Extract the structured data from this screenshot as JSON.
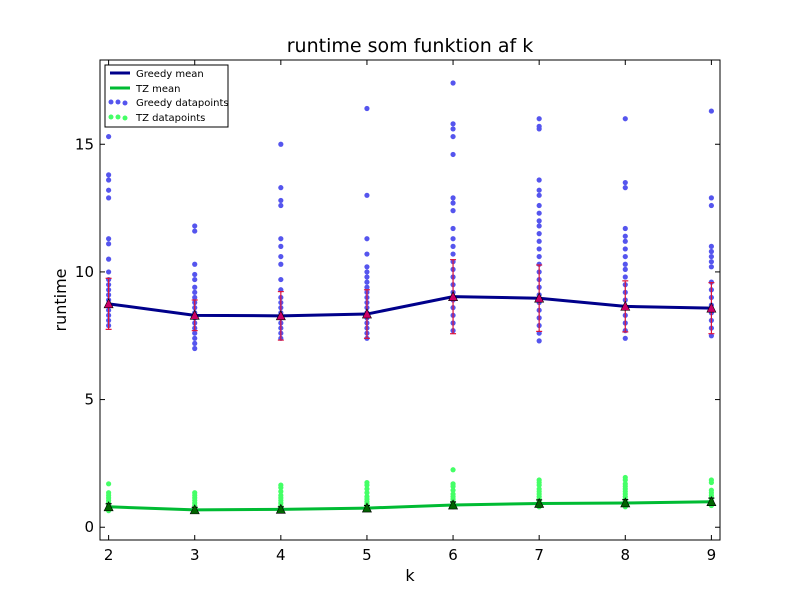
{
  "chart_data": {
    "type": "line",
    "title": "runtime som funktion af k",
    "xlabel": "k",
    "ylabel": "runtime",
    "x": [
      2,
      3,
      4,
      5,
      6,
      7,
      8,
      9
    ],
    "xlim": [
      1.9,
      9.1
    ],
    "ylim": [
      -0.5,
      18.3
    ],
    "yticks": [
      0,
      5,
      10,
      15
    ],
    "xticks": [
      2,
      3,
      4,
      5,
      6,
      7,
      8,
      9
    ],
    "legend_position": "top-left",
    "grid": false,
    "series": [
      {
        "name": "Greedy mean",
        "kind": "line",
        "color": "#00008b",
        "values": [
          8.75,
          8.3,
          8.28,
          8.35,
          9.03,
          8.97,
          8.65,
          8.58
        ],
        "errors": [
          1.0,
          0.6,
          0.95,
          0.95,
          1.45,
          1.3,
          1.0,
          1.0
        ],
        "marker_color": "#cc0066",
        "errorbar_color": "#dc143c"
      },
      {
        "name": "TZ mean",
        "kind": "line",
        "color": "#00bb33",
        "values": [
          0.8,
          0.68,
          0.7,
          0.75,
          0.87,
          0.93,
          0.95,
          1.0
        ],
        "errors": [
          0.12,
          0.1,
          0.1,
          0.1,
          0.12,
          0.14,
          0.13,
          0.14
        ],
        "marker_color": "#006400",
        "errorbar_color": "#000000"
      },
      {
        "name": "Greedy datapoints",
        "kind": "scatter",
        "color": "#5555ee",
        "points_by_x": {
          "2": [
            15.3,
            13.8,
            13.6,
            13.2,
            12.9,
            11.3,
            11.1,
            10.5,
            10.0,
            9.7,
            9.5,
            9.3,
            9.1,
            8.9,
            8.7,
            8.5,
            8.3,
            8.1,
            7.9
          ],
          "3": [
            11.8,
            11.6,
            10.3,
            9.9,
            9.7,
            9.4,
            9.2,
            9.0,
            8.8,
            8.6,
            8.4,
            8.2,
            8.0,
            7.8,
            7.6,
            7.4,
            7.2,
            7.0
          ],
          "4": [
            15.0,
            13.3,
            12.8,
            12.6,
            11.3,
            11.0,
            10.6,
            10.3,
            9.7,
            9.3,
            9.0,
            8.8,
            8.6,
            8.4,
            8.2,
            8.0,
            7.8,
            7.6,
            7.4
          ],
          "5": [
            16.4,
            13.0,
            11.3,
            10.7,
            10.2,
            10.0,
            9.8,
            9.6,
            9.4,
            9.2,
            9.0,
            8.8,
            8.6,
            8.4,
            8.2,
            8.0,
            7.8,
            7.6,
            7.4
          ],
          "6": [
            17.4,
            15.8,
            15.6,
            15.3,
            14.6,
            12.9,
            12.7,
            12.4,
            11.7,
            11.3,
            11.0,
            10.7,
            10.4,
            10.1,
            9.8,
            9.5,
            9.2,
            8.9,
            8.6,
            8.3,
            8.0,
            7.7
          ],
          "7": [
            16.0,
            15.7,
            15.6,
            13.6,
            13.2,
            13.0,
            12.6,
            12.3,
            12.0,
            11.8,
            11.5,
            11.2,
            10.9,
            10.6,
            10.3,
            10.0,
            9.7,
            9.4,
            9.1,
            8.8,
            8.5,
            8.2,
            7.9,
            7.6,
            7.3
          ],
          "8": [
            16.0,
            13.5,
            13.3,
            11.7,
            11.4,
            11.2,
            10.9,
            10.6,
            10.3,
            10.1,
            9.8,
            9.5,
            9.2,
            8.9,
            8.6,
            8.3,
            8.0,
            7.7,
            7.4
          ],
          "9": [
            16.3,
            12.9,
            12.6,
            11.0,
            10.8,
            10.6,
            10.4,
            10.2,
            9.6,
            9.3,
            9.0,
            8.7,
            8.4,
            8.1,
            7.8,
            7.5
          ]
        }
      },
      {
        "name": "TZ datapoints",
        "kind": "scatter",
        "color": "#44ff66",
        "points_by_x": {
          "2": [
            1.7,
            1.35,
            1.25,
            1.15,
            1.05,
            0.95,
            0.85,
            0.75,
            0.65
          ],
          "3": [
            1.35,
            1.25,
            1.15,
            1.05,
            0.95,
            0.85,
            0.75,
            0.65
          ],
          "4": [
            1.65,
            1.55,
            1.4,
            1.25,
            1.15,
            1.05,
            0.95,
            0.85,
            0.75,
            0.65
          ],
          "5": [
            1.75,
            1.65,
            1.5,
            1.35,
            1.2,
            1.1,
            1.0,
            0.9,
            0.8,
            0.7
          ],
          "6": [
            2.25,
            1.7,
            1.6,
            1.45,
            1.3,
            1.2,
            1.1,
            1.0,
            0.9,
            0.8
          ],
          "7": [
            1.85,
            1.75,
            1.65,
            1.5,
            1.4,
            1.3,
            1.2,
            1.1,
            1.0,
            0.9,
            0.8
          ],
          "8": [
            1.95,
            1.85,
            1.7,
            1.6,
            1.5,
            1.4,
            1.3,
            1.2,
            1.1,
            1.0,
            0.9,
            0.8
          ],
          "9": [
            1.85,
            1.75,
            1.45,
            1.35,
            1.25,
            1.15,
            1.05,
            0.95,
            0.85
          ]
        }
      }
    ]
  }
}
